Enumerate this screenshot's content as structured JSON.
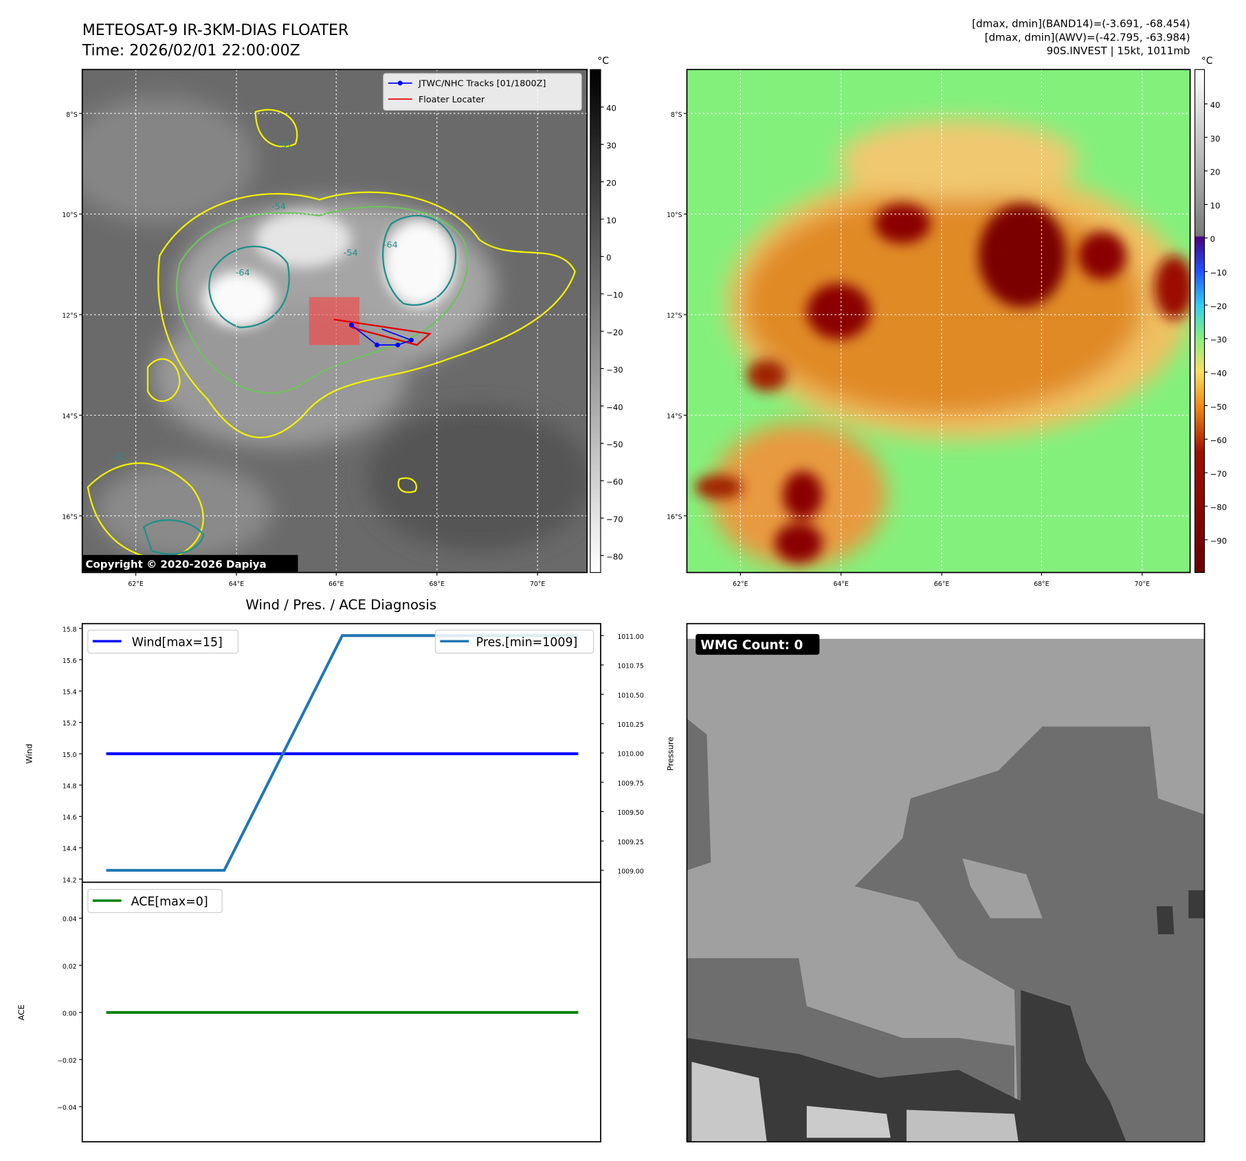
{
  "header": {
    "title": "METEOSAT-9 IR-3KM-DIAS FLOATER",
    "time": "Time: 2026/02/01 22:00:00Z",
    "stats_band14": "[dmax, dmin](BAND14)=(-3.691, -68.454)",
    "stats_awv": "[dmax, dmin](AWV)=(-42.795, -63.984)",
    "storm_info": "90S.INVEST | 15kt, 1011mb"
  },
  "maps": {
    "lat_labels": [
      "8°S",
      "10°S",
      "12°S",
      "14°S",
      "16°S"
    ],
    "lon_labels": [
      "62°E",
      "64°E",
      "66°E",
      "68°E",
      "70°E"
    ],
    "unit": "°C",
    "ir_colorbar_ticks": [
      "40",
      "30",
      "20",
      "10",
      "0",
      "−10",
      "−20",
      "−30",
      "−40",
      "−50",
      "−60",
      "−70",
      "−80"
    ],
    "color_colorbar_ticks": [
      "40",
      "30",
      "20",
      "10",
      "0",
      "−10",
      "−20",
      "−30",
      "−40",
      "−50",
      "−60",
      "−70",
      "−80",
      "−90"
    ],
    "legend_tracks": "JTWC/NHC Tracks [01/1800Z]",
    "legend_floater": "Floater Locater",
    "copyright": "Copyright © 2020-2026 Dapiya",
    "contour_labels": [
      "-31",
      "-54",
      "-64",
      "-54",
      "-64",
      "-31"
    ]
  },
  "wmg": {
    "label": "WMG Count: 0",
    "ylabel": "Pressure"
  },
  "chart_data": [
    {
      "type": "line",
      "title": "Wind / Pres. / ACE Diagnosis",
      "ylabel": "Wind",
      "y2label": "",
      "ylim": [
        14.2,
        15.8
      ],
      "y2lim": [
        1009.0,
        1011.0
      ],
      "yticks": [
        "14.2",
        "14.4",
        "14.6",
        "14.8",
        "15.0",
        "15.2",
        "15.4",
        "15.6",
        "15.8"
      ],
      "y2ticks": [
        "1009.00",
        "1009.25",
        "1009.50",
        "1009.75",
        "1010.00",
        "1010.25",
        "1010.50",
        "1010.75",
        "1011.00"
      ],
      "x": [
        0,
        1,
        2,
        3,
        4
      ],
      "series": [
        {
          "name": "Wind[max=15]",
          "axis": "left",
          "color": "#0000ff",
          "values": [
            15,
            15,
            15,
            15,
            15
          ]
        },
        {
          "name": "Pres.[min=1009]",
          "axis": "right",
          "color": "#1f77b4",
          "values": [
            1009,
            1009,
            1011,
            1011,
            1011
          ]
        }
      ]
    },
    {
      "type": "line",
      "ylabel": "ACE",
      "ylim": [
        -0.05,
        0.05
      ],
      "yticks": [
        "0.04",
        "0.02",
        "0.00",
        "−0.02",
        "−0.04"
      ],
      "x": [
        0,
        1,
        2,
        3,
        4
      ],
      "series": [
        {
          "name": "ACE[max=0]",
          "color": "#008000",
          "values": [
            0,
            0,
            0,
            0,
            0
          ]
        }
      ]
    }
  ]
}
